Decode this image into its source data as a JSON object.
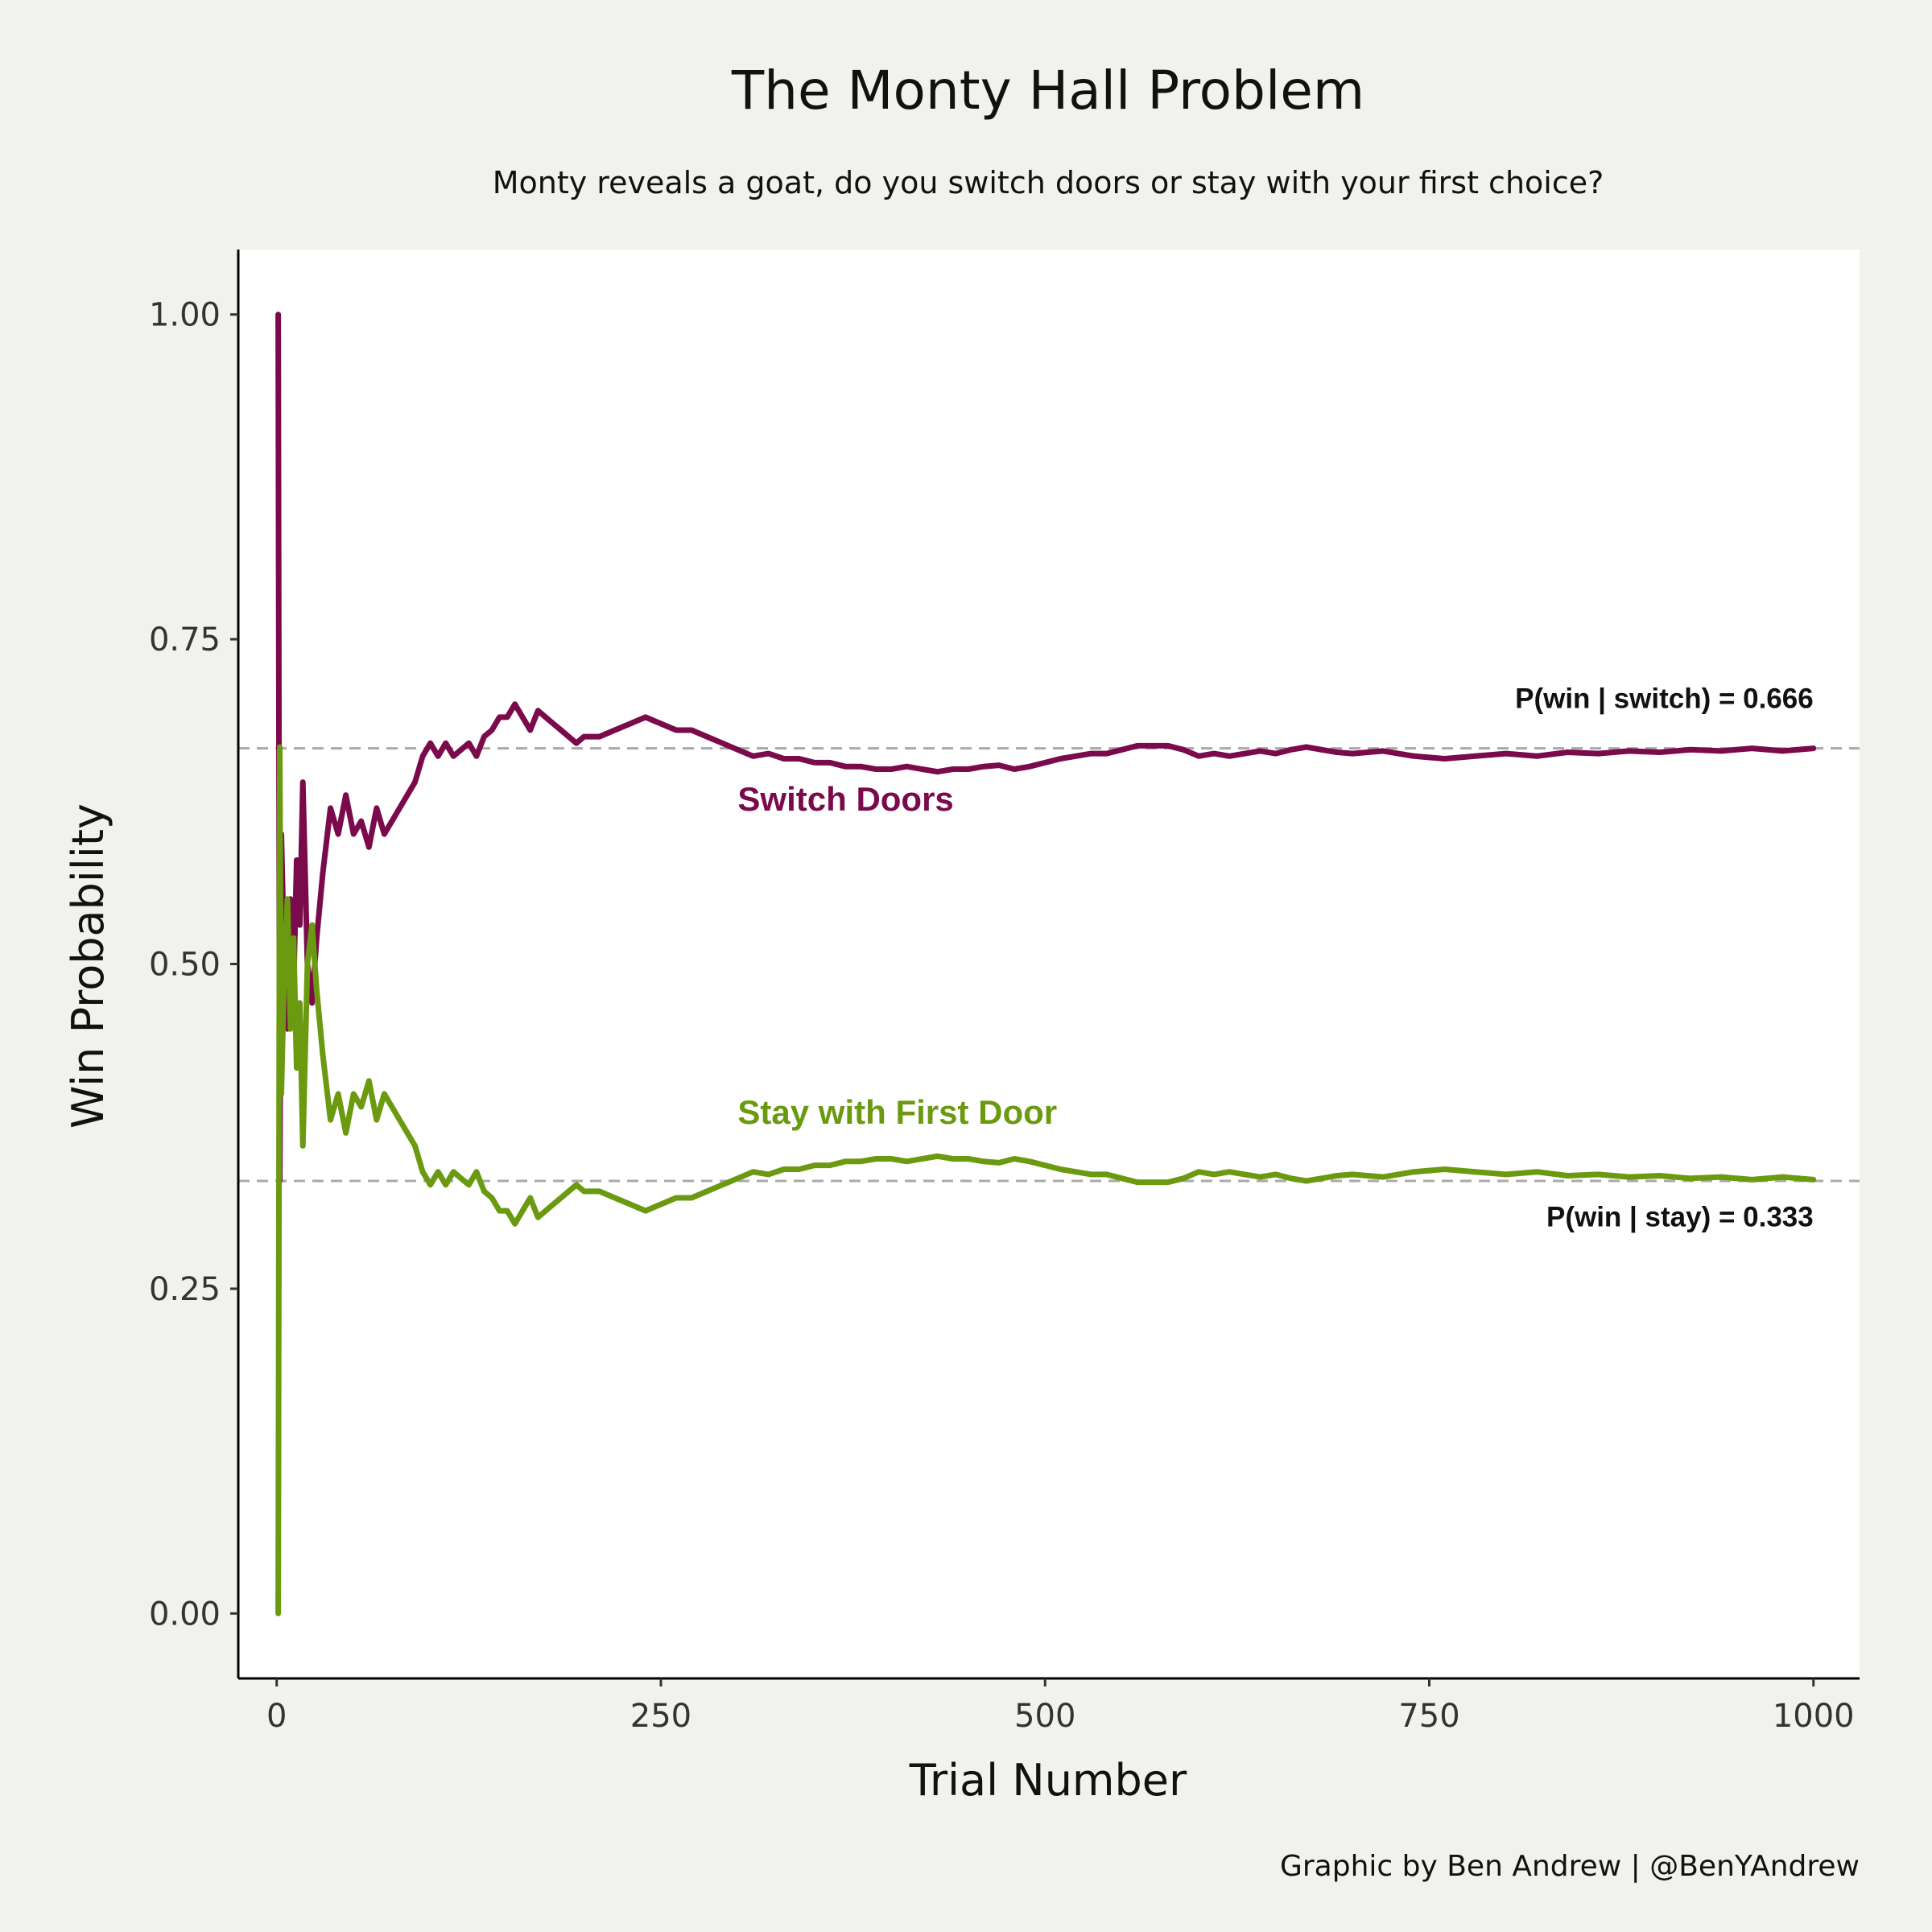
{
  "chart_data": {
    "type": "line",
    "title": "The Monty Hall Problem",
    "subtitle": "Monty reveals a goat, do you switch doors or stay with your first choice?",
    "xlabel": "Trial Number",
    "ylabel": "Win Probability",
    "xlim": [
      -25,
      1030
    ],
    "ylim": [
      -0.05,
      1.05
    ],
    "x_ticks": [
      0,
      250,
      500,
      750,
      1000
    ],
    "x_tick_labels": [
      "0",
      "250",
      "500",
      "750",
      "1000"
    ],
    "y_ticks": [
      0,
      0.25,
      0.5,
      0.75,
      1.0
    ],
    "y_tick_labels": [
      "0.00",
      "0.25",
      "0.50",
      "0.75",
      "1.00"
    ],
    "grid": false,
    "legend": "none",
    "caption": "Graphic by Ben Andrew | @BenYAndrew",
    "series": [
      {
        "name": "Switch Doors",
        "color": "#7a0a4c",
        "x": [
          1,
          2,
          3,
          5,
          7,
          9,
          11,
          13,
          15,
          17,
          20,
          23,
          26,
          30,
          35,
          40,
          45,
          50,
          55,
          60,
          65,
          70,
          75,
          80,
          85,
          90,
          95,
          100,
          105,
          110,
          115,
          120,
          125,
          130,
          135,
          140,
          145,
          150,
          155,
          160,
          165,
          170,
          175,
          180,
          185,
          190,
          195,
          200,
          210,
          220,
          230,
          240,
          250,
          260,
          270,
          280,
          290,
          300,
          310,
          320,
          330,
          340,
          350,
          360,
          370,
          380,
          390,
          400,
          410,
          420,
          430,
          440,
          450,
          460,
          470,
          480,
          490,
          500,
          510,
          520,
          530,
          540,
          550,
          560,
          570,
          580,
          590,
          600,
          610,
          620,
          630,
          640,
          650,
          660,
          670,
          680,
          690,
          700,
          720,
          740,
          760,
          780,
          800,
          820,
          840,
          860,
          880,
          900,
          920,
          940,
          960,
          980,
          1000
        ],
        "y": [
          1.0,
          0.333,
          0.6,
          0.5,
          0.45,
          0.55,
          0.48,
          0.58,
          0.53,
          0.64,
          0.5,
          0.47,
          0.52,
          0.57,
          0.62,
          0.6,
          0.63,
          0.6,
          0.61,
          0.59,
          0.62,
          0.6,
          0.61,
          0.62,
          0.63,
          0.64,
          0.66,
          0.67,
          0.66,
          0.67,
          0.66,
          0.665,
          0.67,
          0.66,
          0.675,
          0.68,
          0.69,
          0.69,
          0.7,
          0.69,
          0.68,
          0.695,
          0.69,
          0.685,
          0.68,
          0.675,
          0.67,
          0.675,
          0.675,
          0.68,
          0.685,
          0.69,
          0.685,
          0.68,
          0.68,
          0.675,
          0.67,
          0.665,
          0.66,
          0.662,
          0.658,
          0.658,
          0.655,
          0.655,
          0.652,
          0.652,
          0.65,
          0.65,
          0.652,
          0.65,
          0.648,
          0.65,
          0.65,
          0.652,
          0.653,
          0.65,
          0.652,
          0.655,
          0.658,
          0.66,
          0.662,
          0.662,
          0.665,
          0.668,
          0.668,
          0.668,
          0.665,
          0.66,
          0.662,
          0.66,
          0.662,
          0.664,
          0.662,
          0.665,
          0.667,
          0.665,
          0.663,
          0.662,
          0.664,
          0.66,
          0.658,
          0.66,
          0.662,
          0.66,
          0.663,
          0.662,
          0.664,
          0.663,
          0.665,
          0.664,
          0.666,
          0.664,
          0.666
        ]
      },
      {
        "name": "Stay with First Door",
        "color": "#6b9a10",
        "x": [
          1,
          2,
          3,
          5,
          7,
          9,
          11,
          13,
          15,
          17,
          20,
          23,
          26,
          30,
          35,
          40,
          45,
          50,
          55,
          60,
          65,
          70,
          75,
          80,
          85,
          90,
          95,
          100,
          105,
          110,
          115,
          120,
          125,
          130,
          135,
          140,
          145,
          150,
          155,
          160,
          165,
          170,
          175,
          180,
          185,
          190,
          195,
          200,
          210,
          220,
          230,
          240,
          250,
          260,
          270,
          280,
          290,
          300,
          310,
          320,
          330,
          340,
          350,
          360,
          370,
          380,
          390,
          400,
          410,
          420,
          430,
          440,
          450,
          460,
          470,
          480,
          490,
          500,
          510,
          520,
          530,
          540,
          550,
          560,
          570,
          580,
          590,
          600,
          610,
          620,
          630,
          640,
          650,
          660,
          670,
          680,
          690,
          700,
          720,
          740,
          760,
          780,
          800,
          820,
          840,
          860,
          880,
          900,
          920,
          940,
          960,
          980,
          1000
        ],
        "y": [
          0.0,
          0.667,
          0.4,
          0.5,
          0.55,
          0.45,
          0.52,
          0.42,
          0.47,
          0.36,
          0.5,
          0.53,
          0.48,
          0.43,
          0.38,
          0.4,
          0.37,
          0.4,
          0.39,
          0.41,
          0.38,
          0.4,
          0.39,
          0.38,
          0.37,
          0.36,
          0.34,
          0.33,
          0.34,
          0.33,
          0.34,
          0.335,
          0.33,
          0.34,
          0.325,
          0.32,
          0.31,
          0.31,
          0.3,
          0.31,
          0.32,
          0.305,
          0.31,
          0.315,
          0.32,
          0.325,
          0.33,
          0.325,
          0.325,
          0.32,
          0.315,
          0.31,
          0.315,
          0.32,
          0.32,
          0.325,
          0.33,
          0.335,
          0.34,
          0.338,
          0.342,
          0.342,
          0.345,
          0.345,
          0.348,
          0.348,
          0.35,
          0.35,
          0.348,
          0.35,
          0.352,
          0.35,
          0.35,
          0.348,
          0.347,
          0.35,
          0.348,
          0.345,
          0.342,
          0.34,
          0.338,
          0.338,
          0.335,
          0.332,
          0.332,
          0.332,
          0.335,
          0.34,
          0.338,
          0.34,
          0.338,
          0.336,
          0.338,
          0.335,
          0.333,
          0.335,
          0.337,
          0.338,
          0.336,
          0.34,
          0.342,
          0.34,
          0.338,
          0.34,
          0.337,
          0.338,
          0.336,
          0.337,
          0.335,
          0.336,
          0.334,
          0.336,
          0.334
        ]
      }
    ],
    "reference_lines": [
      {
        "y": 0.666,
        "label": "P(win | switch) = 0.666",
        "color": "#a9a9a9"
      },
      {
        "y": 0.333,
        "label": "P(win | stay) = 0.333",
        "color": "#a9a9a9"
      }
    ],
    "series_labels": [
      {
        "text": "Switch Doors",
        "x": 300,
        "y": 0.618,
        "color": "#7a0a4c"
      },
      {
        "text": "Stay with First Door",
        "x": 300,
        "y": 0.377,
        "color": "#6b9a10"
      }
    ],
    "reference_label_positions": [
      {
        "x": 1000,
        "y": 0.697
      },
      {
        "x": 1000,
        "y": 0.298
      }
    ]
  }
}
